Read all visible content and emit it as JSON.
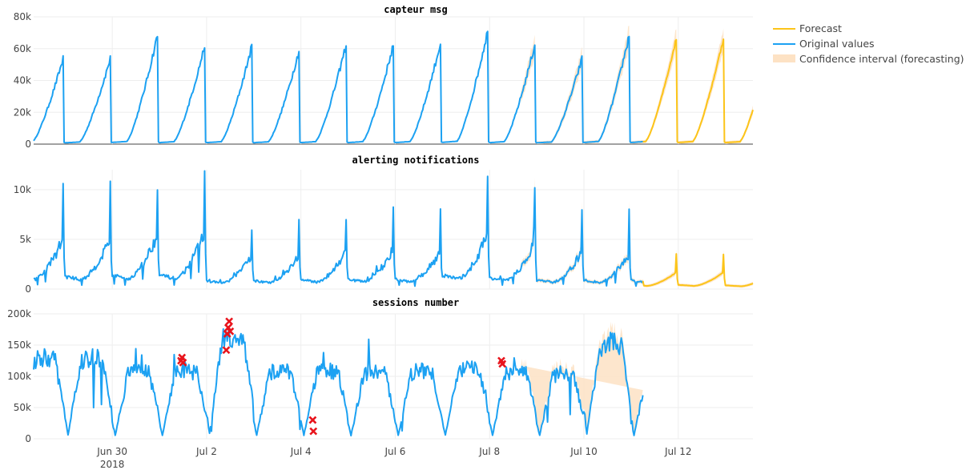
{
  "chart_data": {
    "type": "line",
    "legend": {
      "placement": "top-right",
      "entries": [
        {
          "label": "Forecast",
          "color": "#fcc419",
          "kind": "line"
        },
        {
          "label": "Original values",
          "color": "#1ca1f2",
          "kind": "line"
        },
        {
          "label": "Confidence interval (forecasting)",
          "color": "#fde2c4",
          "kind": "band"
        }
      ]
    },
    "x_axis": {
      "type": "date",
      "range": [
        "2018-06-28T08:00",
        "2018-07-13T14:00"
      ],
      "ticks": [
        {
          "date": "2018-06-30",
          "label": "Jun 30",
          "sublabel": "2018"
        },
        {
          "date": "2018-07-02",
          "label": "Jul 2"
        },
        {
          "date": "2018-07-04",
          "label": "Jul 4"
        },
        {
          "date": "2018-07-06",
          "label": "Jul 6"
        },
        {
          "date": "2018-07-08",
          "label": "Jul 8"
        },
        {
          "date": "2018-07-10",
          "label": "Jul 10"
        },
        {
          "date": "2018-07-12",
          "label": "Jul 12"
        }
      ],
      "original_end": "2018-07-11T06:00",
      "forecast_start": "2018-07-11T06:00"
    },
    "panels": [
      {
        "title": "capteur msg",
        "ylim": [
          0,
          80000
        ],
        "yticks": [
          0,
          20000,
          40000,
          60000,
          80000
        ],
        "ytick_labels": [
          "0",
          "20k",
          "40k",
          "60k",
          "80k"
        ],
        "original_peaks": [
          55000,
          70000,
          63000,
          63000,
          60000,
          64000,
          64000,
          65000,
          73000,
          64000,
          55000,
          70000,
          68000
        ],
        "forecast_peaks": [
          68000,
          64000
        ],
        "ci_peaks_original_segment": [
          68000,
          73000,
          73000
        ],
        "anomalies": []
      },
      {
        "title": "alerting notifications",
        "ylim": [
          0,
          12000
        ],
        "yticks": [
          0,
          5000,
          10000
        ],
        "ytick_labels": [
          "0",
          "5k",
          "10k"
        ],
        "original_peaks": [
          10500,
          11500,
          11700,
          6800,
          7000,
          7800,
          8200,
          8000,
          11400,
          9500,
          7500,
          7300
        ],
        "forecast_peaks": [
          3500,
          3100
        ],
        "anomalies": []
      },
      {
        "title": "sessions number",
        "ylim": [
          0,
          200000
        ],
        "yticks": [
          0,
          50000,
          100000,
          150000,
          200000
        ],
        "ytick_labels": [
          "0",
          "50k",
          "100k",
          "150k",
          "200k"
        ],
        "original_peaks": [
          130000,
          110000,
          110000,
          165000,
          110000,
          110000,
          108000,
          110000,
          112000,
          108000,
          105000,
          155000,
          108000
        ],
        "forecast_peaks": [
          100000,
          158000,
          102000,
          148000
        ],
        "anomalies": [
          {
            "x": "2018-07-01T11:00",
            "y": 125000
          },
          {
            "x": "2018-07-01T11:30",
            "y": 130000
          },
          {
            "x": "2018-07-01T12:00",
            "y": 122000
          },
          {
            "x": "2018-07-02T10:00",
            "y": 142000
          },
          {
            "x": "2018-07-02T10:30",
            "y": 168000
          },
          {
            "x": "2018-07-02T11:00",
            "y": 178000
          },
          {
            "x": "2018-07-02T11:30",
            "y": 188000
          },
          {
            "x": "2018-07-02T12:00",
            "y": 172000
          },
          {
            "x": "2018-07-04T06:00",
            "y": 30000
          },
          {
            "x": "2018-07-04T06:20",
            "y": 12000
          },
          {
            "x": "2018-07-08T06:00",
            "y": 125000
          },
          {
            "x": "2018-07-08T06:30",
            "y": 120000
          }
        ]
      }
    ]
  }
}
